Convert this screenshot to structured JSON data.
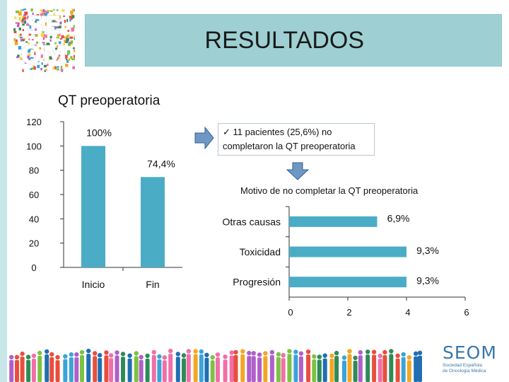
{
  "header": {
    "logo_text": "SE OM",
    "title": "RESULTADOS"
  },
  "left_chart": {
    "title": "QT preoperatoria"
  },
  "callout": {
    "line1": "✓ 11 pacientes (25,6%) no",
    "line2": "completaron la QT preoperatoria"
  },
  "right_chart": {
    "title": "Motivo de no completar la QT preoperatoria"
  },
  "footer": {
    "brand": "SEOM",
    "brand_sub_1": "Sociedad Española",
    "brand_sub_2": "de Oncología Médica"
  },
  "colors": {
    "bar": "#4bacc6",
    "banner": "#9ed0d3",
    "arrow": "#6f97c4"
  },
  "chart_data": [
    {
      "type": "bar",
      "title": "QT preoperatoria",
      "categories": [
        "Inicio",
        "Fin"
      ],
      "values": [
        100,
        74.4
      ],
      "data_labels": [
        "100%",
        "74,4%"
      ],
      "yticks": [
        "120",
        "100",
        "80",
        "60",
        "40",
        "20",
        "0"
      ],
      "ylim": [
        0,
        120
      ],
      "grid": false
    },
    {
      "type": "bar",
      "orientation": "horizontal",
      "title": "Motivo de no completar la QT preoperatoria",
      "categories": [
        "Otras causas",
        "Toxicidad",
        "Progresión"
      ],
      "values": [
        3,
        4,
        4
      ],
      "data_labels": [
        "6,9%",
        "9,3%",
        "9,3%"
      ],
      "xticks": [
        "0",
        "2",
        "4",
        "6"
      ],
      "xlim": [
        0,
        6
      ],
      "grid": false
    }
  ]
}
